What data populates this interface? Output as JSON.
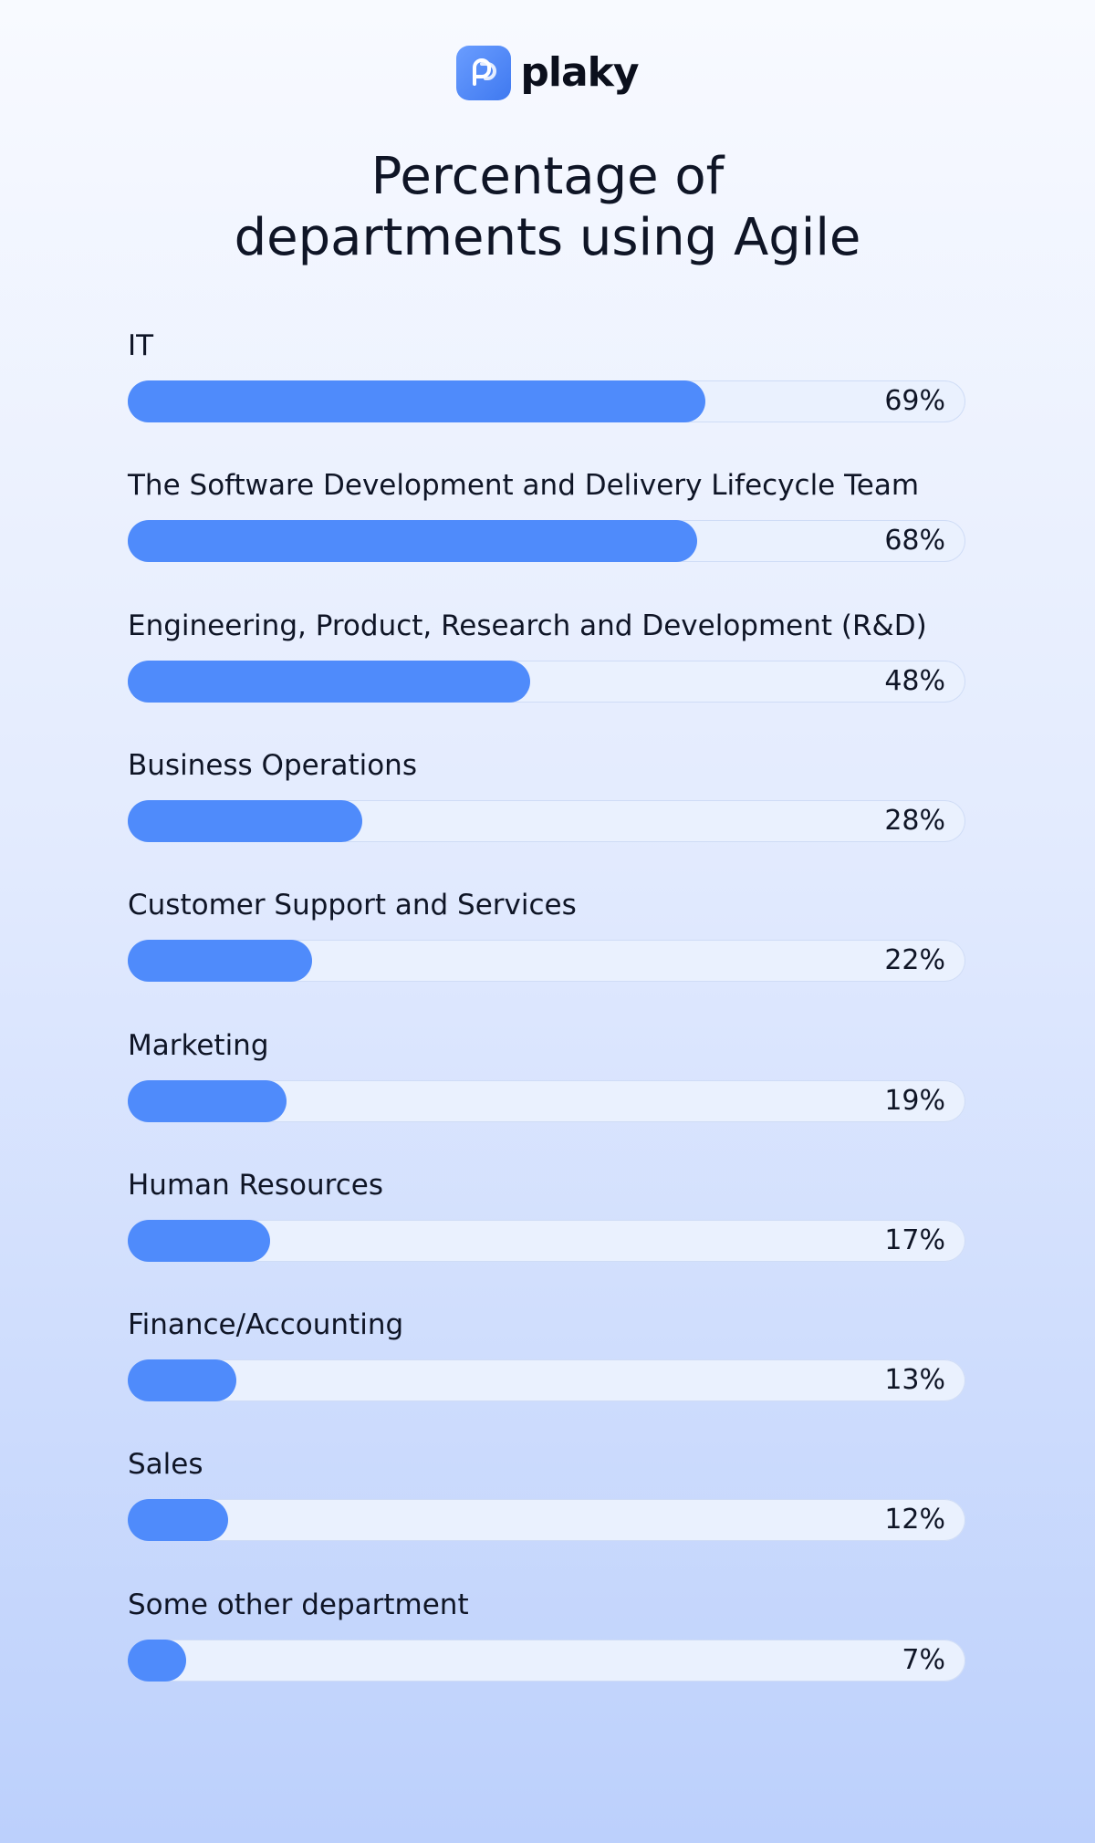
{
  "brand": {
    "name": "plaky",
    "icon": "plaky-logo-icon",
    "accent": "#4f8bfb"
  },
  "chart_data": {
    "type": "bar",
    "orientation": "horizontal",
    "title": "Percentage of departments using Agile",
    "title_lines": [
      "Percentage of",
      "departments using Agile"
    ],
    "xlim": [
      0,
      100
    ],
    "grid": false,
    "categories": [
      "IT",
      "The Software Development and Delivery Lifecycle Team",
      "Engineering, Product, Research and Development (R&D)",
      "Business Operations",
      "Customer Support and Services",
      "Marketing",
      "Human Resources",
      "Finance/Accounting",
      "Sales",
      "Some other department"
    ],
    "values": [
      69,
      68,
      48,
      28,
      22,
      19,
      17,
      13,
      12,
      7
    ],
    "value_labels": [
      "69%",
      "68%",
      "48%",
      "28%",
      "22%",
      "19%",
      "17%",
      "13%",
      "12%",
      "7%"
    ],
    "bar_color": "#4f8bfb",
    "track_color": "#eaf1fe"
  }
}
